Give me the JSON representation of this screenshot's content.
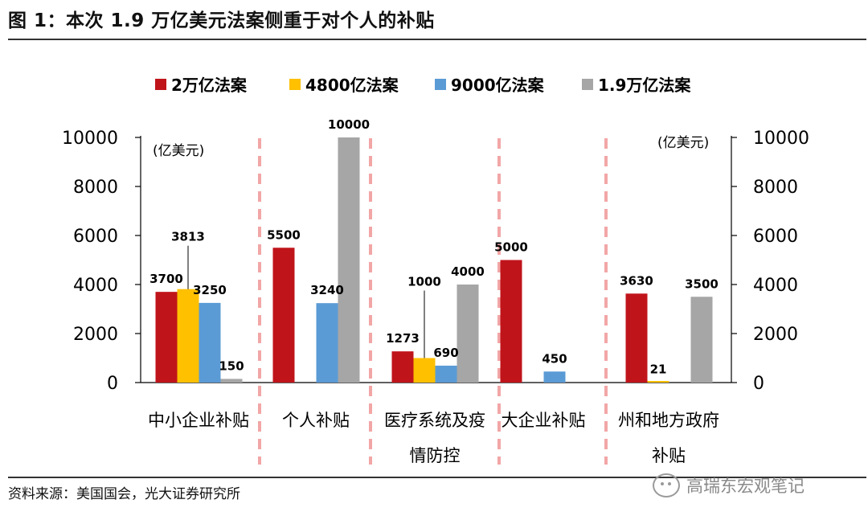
{
  "figure": {
    "title": "图 1：本次 1.9 万亿美元法案侧重于对个人的补贴",
    "source": "资料来源：美国国会，光大证券研究所",
    "watermark": "高瑞东宏观笔记"
  },
  "chart_data": {
    "type": "bar",
    "title": "",
    "unit_left": "(亿美元)",
    "unit_right": "(亿美元)",
    "ylim": [
      0,
      10000
    ],
    "yticks": [
      0,
      2000,
      4000,
      6000,
      8000,
      10000
    ],
    "legend_position": "top",
    "categories": [
      [
        "中小企业补贴"
      ],
      [
        "个人补贴"
      ],
      [
        "医疗系统及疫",
        "情防控"
      ],
      [
        "大企业补贴"
      ],
      [
        "州和地方政府",
        "补贴"
      ]
    ],
    "series": [
      {
        "name": "2万亿法案",
        "color": "#c0141b",
        "values": [
          3700,
          5500,
          1273,
          5000,
          3630
        ]
      },
      {
        "name": "4800亿法案",
        "color": "#ffc000",
        "values": [
          3813,
          null,
          1000,
          null,
          21
        ]
      },
      {
        "name": "9000亿法案",
        "color": "#5b9bd5",
        "values": [
          3250,
          3240,
          690,
          450,
          null
        ]
      },
      {
        "name": "1.9万亿法案",
        "color": "#a6a6a6",
        "values": [
          150,
          10000,
          4000,
          null,
          3500
        ]
      }
    ],
    "separator_color": "#f2a6a6"
  }
}
